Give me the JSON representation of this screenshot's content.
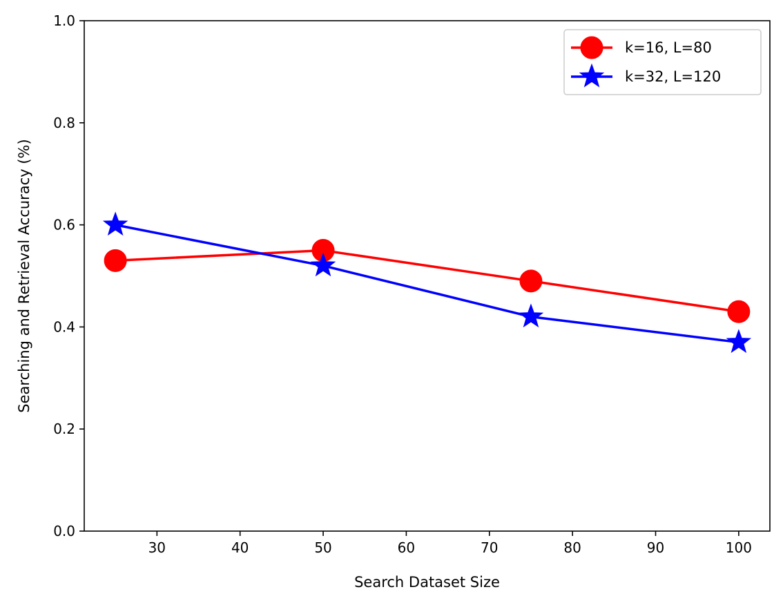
{
  "chart_data": {
    "type": "line",
    "title": "",
    "xlabel": "Search Dataset Size",
    "ylabel": "Searching and Retrieval Accuracy (%)",
    "xlim": [
      21.25,
      103.75
    ],
    "ylim": [
      0.0,
      1.0
    ],
    "xticks": [
      30,
      40,
      50,
      60,
      70,
      80,
      90,
      100
    ],
    "yticks": [
      0.0,
      0.2,
      0.4,
      0.6,
      0.8,
      1.0
    ],
    "xtick_labels": [
      "30",
      "40",
      "50",
      "60",
      "70",
      "80",
      "90",
      "100"
    ],
    "ytick_labels": [
      "0.0",
      "0.2",
      "0.4",
      "0.6",
      "0.8",
      "1.0"
    ],
    "grid": false,
    "legend_position": "top-right",
    "series": [
      {
        "name": "k=16, L=80",
        "color": "#ff0000",
        "marker": "circle",
        "x": [
          25,
          50,
          75,
          100
        ],
        "y": [
          0.53,
          0.55,
          0.49,
          0.43
        ]
      },
      {
        "name": "k=32, L=120",
        "color": "#0000ff",
        "marker": "star",
        "x": [
          25,
          50,
          75,
          100
        ],
        "y": [
          0.6,
          0.52,
          0.42,
          0.37
        ]
      }
    ]
  }
}
